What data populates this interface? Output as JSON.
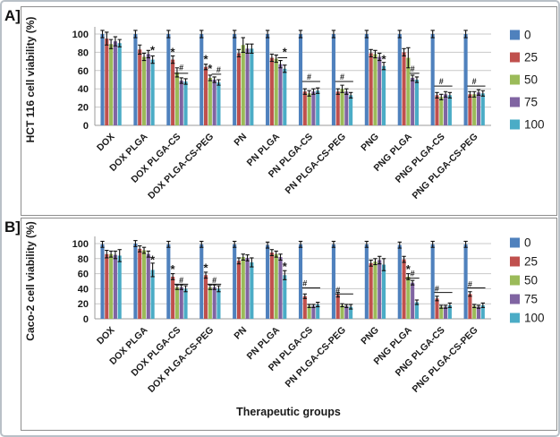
{
  "figure": {
    "panel_a_label": "A]",
    "panel_b_label": "B]"
  },
  "legend": {
    "entries": [
      {
        "label": "0",
        "color": "#4F81BD"
      },
      {
        "label": "25",
        "color": "#C0504D"
      },
      {
        "label": "50",
        "color": "#9BBB59"
      },
      {
        "label": "75",
        "color": "#8064A2"
      },
      {
        "label": "100",
        "color": "#4BACC6"
      }
    ]
  },
  "chart_data": [
    {
      "type": "bar",
      "panel": "A",
      "ylabel": "HCT 116 cell viability (%)",
      "xlabel": "",
      "ylim": [
        0,
        100
      ],
      "yticks": [
        0,
        20,
        40,
        60,
        80,
        100
      ],
      "grid": true,
      "legend_position": "right",
      "categories": [
        "DOX",
        "DOX PLGA",
        "DOX PLGA-CS",
        "DOX PLGA-CS-PEG",
        "PN",
        "PN PLGA",
        "PN PLGA-CS",
        "PN PLGA-CS-PEG",
        "PNG",
        "PNG PLGA",
        "PNG PLGA-CS",
        "PNG PLGA-CS-PEG"
      ],
      "series": [
        {
          "name": "0",
          "color": "#4F81BD",
          "values": [
            100,
            100,
            100,
            100,
            100,
            100,
            100,
            100,
            100,
            100,
            100,
            100
          ],
          "errors": [
            4,
            4,
            4,
            4,
            4,
            4,
            4,
            4,
            4,
            4,
            4,
            4
          ]
        },
        {
          "name": "25",
          "color": "#C0504D",
          "values": [
            95,
            83,
            72,
            64,
            79,
            74,
            37,
            37,
            79,
            80,
            33,
            34
          ],
          "errors": [
            7,
            5,
            4,
            3,
            4,
            4,
            3,
            3,
            4,
            4,
            3,
            3
          ]
        },
        {
          "name": "50",
          "color": "#9BBB59",
          "values": [
            89,
            75,
            58,
            52,
            88,
            73,
            35,
            40,
            78,
            74,
            31,
            34
          ],
          "errors": [
            5,
            4,
            5,
            3,
            8,
            4,
            3,
            4,
            4,
            11,
            3,
            3
          ]
        },
        {
          "name": "75",
          "color": "#8064A2",
          "values": [
            92,
            78,
            49,
            50,
            84,
            67,
            37,
            37,
            75,
            52,
            34,
            36
          ],
          "errors": [
            5,
            4,
            3,
            3,
            5,
            4,
            3,
            3,
            4,
            3,
            3,
            3
          ]
        },
        {
          "name": "100",
          "color": "#4BACC6",
          "values": [
            90,
            72,
            48,
            47,
            84,
            62,
            38,
            33,
            65,
            50,
            33,
            35
          ],
          "errors": [
            4,
            4,
            3,
            3,
            5,
            4,
            3,
            3,
            4,
            3,
            3,
            3
          ]
        }
      ],
      "annotations": {
        "symbols": [
          {
            "g": 1,
            "s": 4,
            "v": 81,
            "text": "*"
          },
          {
            "g": 2,
            "s": 1,
            "v": 79,
            "text": "*"
          },
          {
            "g": 2,
            "s": 3,
            "v": 63,
            "text": "#"
          },
          {
            "g": 3,
            "s": 1,
            "v": 71,
            "text": "*"
          },
          {
            "g": 3,
            "s": 2,
            "v": 61,
            "text": "*"
          },
          {
            "g": 3,
            "s": 4,
            "v": 61,
            "text": "#"
          },
          {
            "g": 5,
            "s": 4,
            "v": 79,
            "text": "*"
          },
          {
            "g": 6,
            "s": 2,
            "v": 53,
            "text": "#"
          },
          {
            "g": 7,
            "s": 2,
            "v": 53,
            "text": "#"
          },
          {
            "g": 8,
            "s": 4,
            "v": 71,
            "text": "*"
          },
          {
            "g": 9,
            "s": 3,
            "v": 62,
            "text": "#"
          },
          {
            "g": 10,
            "s": 2,
            "v": 48,
            "text": "#"
          },
          {
            "g": 11,
            "s": 2,
            "v": 48,
            "text": "#"
          }
        ],
        "lines": [
          {
            "g": 2,
            "from": 2,
            "to": 4,
            "v": 57
          },
          {
            "g": 3,
            "from": 3,
            "to": 4,
            "v": 56
          },
          {
            "g": 5,
            "from": 3,
            "to": 4,
            "v": 74
          },
          {
            "g": 6,
            "from": 1,
            "to": 4,
            "v": 48
          },
          {
            "g": 7,
            "from": 1,
            "to": 4,
            "v": 48
          },
          {
            "g": 9,
            "from": 3,
            "to": 4,
            "v": 57
          },
          {
            "g": 10,
            "from": 1,
            "to": 4,
            "v": 43
          },
          {
            "g": 11,
            "from": 1,
            "to": 4,
            "v": 43
          }
        ]
      }
    },
    {
      "type": "bar",
      "panel": "B",
      "ylabel": "Caco-2 cell viability (%)",
      "xlabel": "Therapeutic groups",
      "ylim": [
        0,
        100
      ],
      "yticks": [
        0,
        20,
        40,
        60,
        80,
        100
      ],
      "grid": true,
      "legend_position": "right",
      "categories": [
        "DOX",
        "DOX PLGA",
        "DOX PLGA-CS",
        "DOX PLGA-CS-PEG",
        "PN",
        "PN PLGA",
        "PN PLGA-CS",
        "PN PLGA-CS-PEG",
        "PNG",
        "PNG PLGA",
        "PNG PLGA-CS",
        "PNG PLGA-CS-PEG"
      ],
      "series": [
        {
          "name": "0",
          "color": "#4F81BD",
          "values": [
            99,
            100,
            99,
            99,
            99,
            98,
            99,
            99,
            99,
            98,
            99,
            99
          ],
          "errors": [
            4,
            4,
            4,
            4,
            4,
            4,
            4,
            4,
            4,
            4,
            4,
            4
          ]
        },
        {
          "name": "25",
          "color": "#C0504D",
          "values": [
            86,
            93,
            56,
            58,
            77,
            88,
            30,
            32,
            74,
            79,
            27,
            33
          ],
          "errors": [
            5,
            4,
            4,
            4,
            4,
            4,
            3,
            3,
            4,
            4,
            3,
            3
          ]
        },
        {
          "name": "50",
          "color": "#9BBB59",
          "values": [
            86,
            91,
            42,
            42,
            82,
            86,
            17,
            18,
            76,
            56,
            16,
            17
          ],
          "errors": [
            4,
            4,
            3,
            3,
            4,
            4,
            2,
            2,
            4,
            4,
            2,
            2
          ]
        },
        {
          "name": "75",
          "color": "#8064A2",
          "values": [
            85,
            86,
            42,
            42,
            81,
            82,
            17,
            17,
            78,
            48,
            16,
            16
          ],
          "errors": [
            5,
            4,
            3,
            3,
            4,
            4,
            2,
            2,
            5,
            3,
            2,
            2
          ]
        },
        {
          "name": "100",
          "color": "#4BACC6",
          "values": [
            84,
            65,
            40,
            40,
            75,
            58,
            19,
            16,
            72,
            22,
            18,
            18
          ],
          "errors": [
            8,
            9,
            4,
            4,
            6,
            6,
            3,
            3,
            8,
            3,
            3,
            3
          ]
        }
      ],
      "annotations": {
        "symbols": [
          {
            "g": 1,
            "s": 4,
            "v": 77,
            "text": "*"
          },
          {
            "g": 2,
            "s": 1,
            "v": 64,
            "text": "*"
          },
          {
            "g": 2,
            "s": 3,
            "v": 51,
            "text": "#"
          },
          {
            "g": 3,
            "s": 1,
            "v": 66,
            "text": "*"
          },
          {
            "g": 3,
            "s": 3,
            "v": 51,
            "text": "#"
          },
          {
            "g": 5,
            "s": 4,
            "v": 68,
            "text": "*"
          },
          {
            "g": 6,
            "s": 1,
            "v": 47,
            "text": "#"
          },
          {
            "g": 7,
            "s": 1,
            "v": 38,
            "text": "#"
          },
          {
            "g": 9,
            "s": 2,
            "v": 64,
            "text": "*"
          },
          {
            "g": 9,
            "s": 3,
            "v": 60,
            "text": "#"
          },
          {
            "g": 10,
            "s": 1,
            "v": 40,
            "text": "#"
          },
          {
            "g": 11,
            "s": 1,
            "v": 46,
            "text": "#"
          }
        ],
        "lines": [
          {
            "g": 2,
            "from": 2,
            "to": 4,
            "v": 46
          },
          {
            "g": 3,
            "from": 2,
            "to": 4,
            "v": 46
          },
          {
            "g": 6,
            "from": 1,
            "to": 4,
            "v": 41
          },
          {
            "g": 7,
            "from": 1,
            "to": 4,
            "v": 33
          },
          {
            "g": 9,
            "from": 2,
            "to": 4,
            "v": 54
          },
          {
            "g": 10,
            "from": 1,
            "to": 4,
            "v": 35
          },
          {
            "g": 11,
            "from": 1,
            "to": 4,
            "v": 41
          }
        ]
      }
    }
  ]
}
